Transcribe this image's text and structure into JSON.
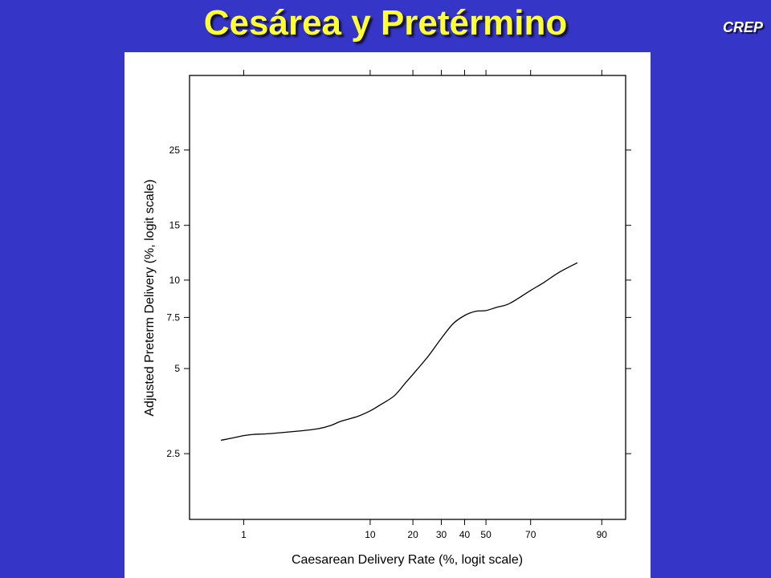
{
  "slide": {
    "title": "Cesárea y Pretérmino",
    "brand": "CREP"
  },
  "colors": {
    "background": "#3535c8",
    "title": "#ffff33",
    "brand": "#ffffff",
    "plot_background": "#ffffff",
    "line": "#000000"
  },
  "chart_data": {
    "type": "line",
    "title": "",
    "xlabel": "Caesarean Delivery Rate (%, logit scale)",
    "ylabel": "Adjusted Preterm Delivery (%, logit scale)",
    "xscale": "logit",
    "yscale": "logit",
    "xlim": [
      0.36,
      93.4
    ],
    "ylim": [
      1.45,
      38.5
    ],
    "xticks": [
      1,
      10,
      20,
      30,
      40,
      50,
      70,
      90
    ],
    "yticks": [
      2.5,
      5,
      7.5,
      10,
      15,
      25
    ],
    "grid": false,
    "series": [
      {
        "name": "",
        "x": [
          0.65,
          0.8,
          1,
          1.2,
          1.5,
          2,
          3,
          4,
          5,
          6,
          8,
          10,
          12,
          15,
          18,
          20,
          25,
          30,
          35,
          40,
          45,
          50,
          55,
          60,
          65,
          70,
          75,
          80,
          85
        ],
        "y": [
          2.79,
          2.84,
          2.9,
          2.93,
          2.94,
          2.97,
          3.02,
          3.07,
          3.15,
          3.26,
          3.39,
          3.55,
          3.74,
          4.02,
          4.48,
          4.77,
          5.51,
          6.36,
          7.15,
          7.61,
          7.86,
          7.91,
          8.11,
          8.29,
          8.71,
          9.24,
          9.82,
          10.6,
          11.4
        ]
      }
    ]
  }
}
